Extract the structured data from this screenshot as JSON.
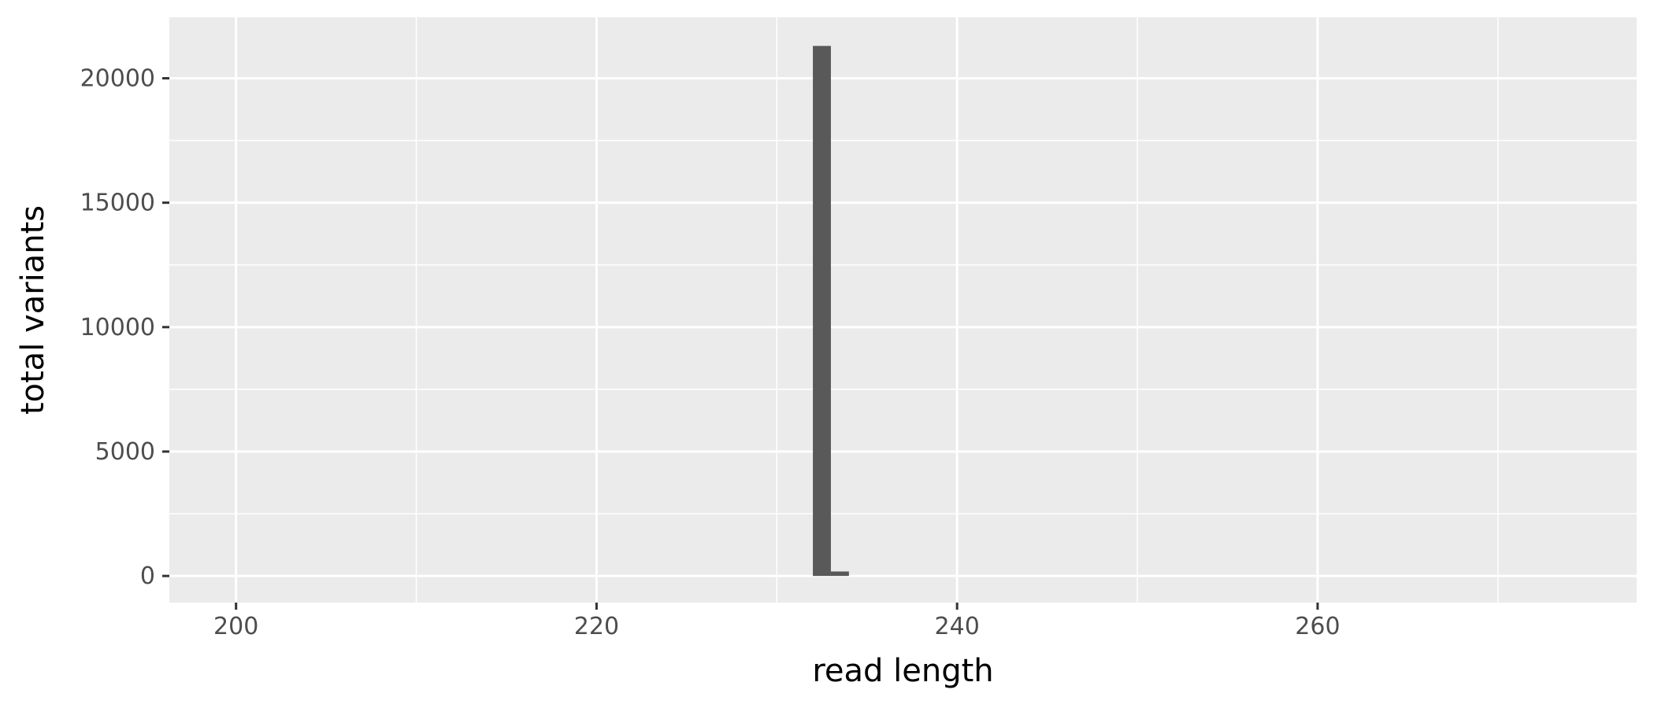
{
  "chart_data": {
    "type": "bar",
    "title": "",
    "xlabel": "read length",
    "ylabel": "total variants",
    "xlim": [
      196.3,
      277.7
    ],
    "ylim": [
      -1070,
      22450
    ],
    "x_ticks": [
      200,
      220,
      240,
      260
    ],
    "y_ticks": [
      0,
      5000,
      10000,
      15000,
      20000
    ],
    "x_tick_labels": [
      "200",
      "220",
      "240",
      "260"
    ],
    "y_tick_labels": [
      "0",
      "5000",
      "10000",
      "15000",
      "20000"
    ],
    "bin_width": 1,
    "bins": [
      {
        "x0": 232,
        "x1": 233,
        "value": 21300
      },
      {
        "x0": 233,
        "x1": 234,
        "value": 180
      }
    ],
    "grid": true,
    "legend": "none",
    "colors": {
      "panel": "#EBEBEB",
      "grid": "#FFFFFF",
      "bar": "#595959",
      "tick": "#333333",
      "tick_label": "#4D4D4D",
      "axis_title": "#000000"
    }
  }
}
